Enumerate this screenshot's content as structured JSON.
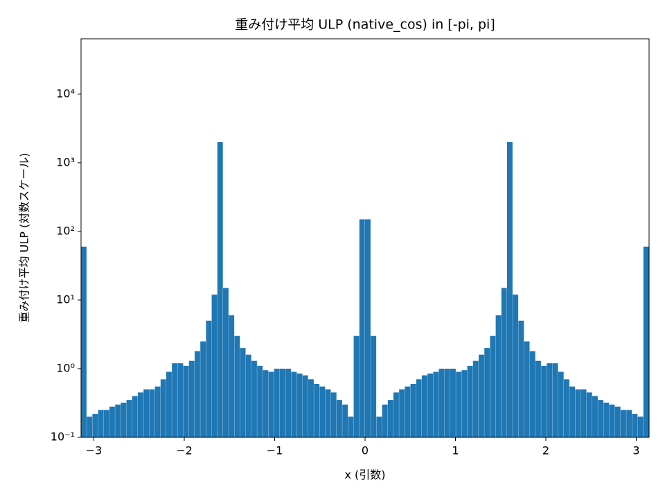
{
  "chart_data": {
    "type": "histogram",
    "title": "重み付け平均 ULP (native_cos) in [-pi, pi]",
    "x_label": "x (引数)",
    "y_label": "重み付け平均 ULP (対数スケール)",
    "color": "#1f77b4",
    "log_y": true,
    "bins": [
      -3.1416,
      -3.0788,
      -3.0159,
      -2.9531,
      -2.8903,
      -2.8274,
      -2.7646,
      -2.7018,
      -2.6389,
      -2.5761,
      -2.5133,
      -2.4504,
      -2.3876,
      -2.3248,
      -2.2619,
      -2.1991,
      -2.1363,
      -2.0735,
      -2.0106,
      -1.9478,
      -1.885,
      -1.8221,
      -1.7593,
      -1.6965,
      -1.6336,
      -1.5708,
      -1.508,
      -1.4451,
      -1.3823,
      -1.3195,
      -1.2566,
      -1.1938,
      -1.131,
      -1.0681,
      -1.0053,
      -0.9425,
      -0.8796,
      -0.8168,
      -0.754,
      -0.6912,
      -0.6283,
      -0.5655,
      -0.5027,
      -0.4398,
      -0.377,
      -0.3142,
      -0.2513,
      -0.1885,
      -0.1257,
      -0.0628,
      0,
      0.0628,
      0.1257,
      0.1885,
      0.2513,
      0.3142,
      0.377,
      0.4398,
      0.5027,
      0.5655,
      0.6283,
      0.6912,
      0.754,
      0.8168,
      0.8796,
      0.9425,
      1.0053,
      1.0681,
      1.131,
      1.1938,
      1.2566,
      1.3195,
      1.3823,
      1.4451,
      1.508,
      1.5708,
      1.6336,
      1.6965,
      1.7593,
      1.8221,
      1.885,
      1.9478,
      2.0106,
      2.0735,
      2.1363,
      2.1991,
      2.2619,
      2.3248,
      2.3876,
      2.4504,
      2.5133,
      2.5761,
      2.6389,
      2.7018,
      2.7646,
      2.8274,
      2.8903,
      2.9531,
      3.0159,
      3.0788,
      3.1416
    ],
    "values": [
      60,
      0.2,
      0.22,
      0.25,
      0.25,
      0.28,
      0.3,
      0.32,
      0.35,
      0.4,
      0.45,
      0.5,
      0.5,
      0.55,
      0.7,
      0.9,
      1.2,
      1.2,
      1.1,
      1.3,
      1.8,
      2.5,
      5,
      12,
      2000,
      15,
      6,
      3,
      2,
      1.6,
      1.3,
      1.1,
      0.95,
      0.9,
      1.0,
      1.0,
      1.0,
      0.9,
      0.85,
      0.8,
      0.7,
      0.6,
      0.55,
      0.5,
      0.45,
      0.35,
      0.3,
      0.2,
      3,
      150,
      150,
      3,
      0.2,
      0.3,
      0.35,
      0.45,
      0.5,
      0.55,
      0.6,
      0.7,
      0.8,
      0.85,
      0.9,
      1.0,
      1.0,
      1.0,
      0.9,
      0.95,
      1.1,
      1.3,
      1.6,
      2,
      3,
      6,
      15,
      2000,
      12,
      5,
      2.5,
      1.8,
      1.3,
      1.1,
      1.2,
      1.2,
      0.9,
      0.7,
      0.55,
      0.5,
      0.5,
      0.45,
      0.4,
      0.35,
      0.32,
      0.3,
      0.28,
      0.25,
      0.25,
      0.22,
      0.2,
      60
    ],
    "xlim": [
      -3.1416,
      3.1416
    ],
    "ylim": [
      0.1,
      64000
    ],
    "xticks": [
      {
        "value": -3,
        "label": "−3"
      },
      {
        "value": -2,
        "label": "−2"
      },
      {
        "value": -1,
        "label": "−1"
      },
      0,
      1,
      2,
      3
    ],
    "yticks": [
      {
        "value": 0.1,
        "label": "10⁻¹"
      },
      {
        "value": 1,
        "label": "10⁰"
      },
      {
        "value": 10,
        "label": "10¹"
      },
      {
        "value": 100,
        "label": "10²"
      },
      {
        "value": 1000,
        "label": "10³"
      },
      {
        "value": 10000,
        "label": "10⁴"
      }
    ]
  }
}
